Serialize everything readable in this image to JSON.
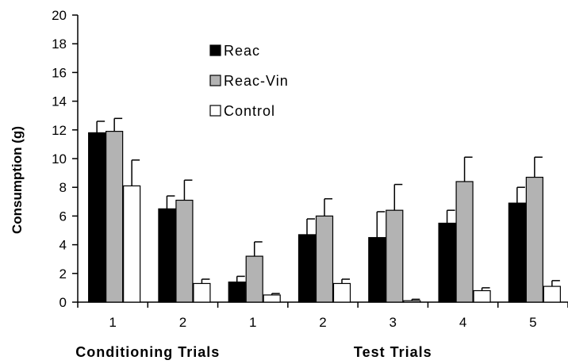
{
  "chart_data": {
    "type": "bar",
    "title": "",
    "xlabel": "",
    "ylabel": "Consumption (g)",
    "ylim": [
      0,
      20
    ],
    "yticks": [
      "0",
      "2",
      "4",
      "6",
      "8",
      "10",
      "12",
      "14",
      "16",
      "18",
      "20"
    ],
    "grid": false,
    "legend_position": "top-center",
    "categories": [
      "1",
      "2",
      "1",
      "2",
      "3",
      "4",
      "5"
    ],
    "groups": [
      {
        "label": "Conditioning Trials",
        "categories": [
          0,
          1
        ]
      },
      {
        "label": "Test Trials",
        "categories": [
          2,
          3,
          4,
          5,
          6
        ]
      }
    ],
    "series": [
      {
        "name": "Reac",
        "color": "#000000",
        "values": [
          11.8,
          6.5,
          1.4,
          4.7,
          4.5,
          5.5,
          6.9
        ],
        "errors": [
          0.8,
          0.9,
          0.4,
          1.1,
          1.8,
          0.9,
          1.1
        ]
      },
      {
        "name": "Reac-Vin",
        "color": "#b3b3b3",
        "values": [
          11.9,
          7.1,
          3.2,
          6.0,
          6.4,
          8.4,
          8.7
        ],
        "errors": [
          0.9,
          1.4,
          1.0,
          1.2,
          1.8,
          1.7,
          1.4
        ]
      },
      {
        "name": "Control",
        "color": "#ffffff",
        "values": [
          8.1,
          1.3,
          0.5,
          1.3,
          0.1,
          0.8,
          1.1
        ],
        "errors": [
          1.8,
          0.3,
          0.1,
          0.3,
          0.1,
          0.2,
          0.4
        ]
      }
    ]
  }
}
